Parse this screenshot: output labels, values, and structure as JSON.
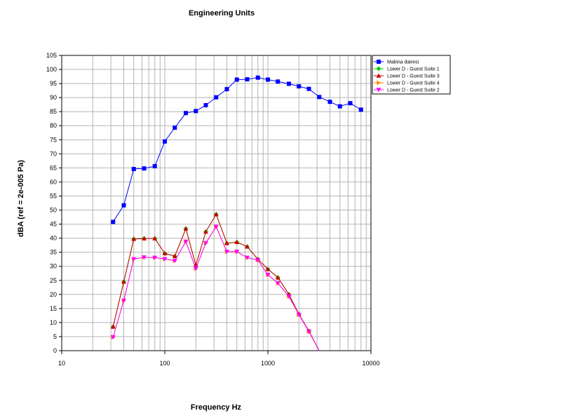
{
  "chart_data": {
    "type": "line",
    "title": "Engineering Units",
    "xlabel": "Frequency Hz",
    "ylabel": "dBA (ref = 2e-005 Pa)",
    "xscale": "log",
    "xlim": [
      10,
      10000
    ],
    "ylim": [
      0,
      105
    ],
    "grid": true,
    "legend_position": "top-right",
    "x_tick_labels": [
      "10",
      "100",
      "1000",
      "10000"
    ],
    "y_tick_labels": [
      "0",
      "5",
      "10",
      "15",
      "20",
      "25",
      "30",
      "35",
      "40",
      "45",
      "50",
      "55",
      "60",
      "65",
      "70",
      "75",
      "80",
      "85",
      "90",
      "95",
      "100",
      "105"
    ],
    "series": [
      {
        "name": "Makina dairesi",
        "color": "#0000ff",
        "marker": "square",
        "x": [
          31.5,
          40,
          50,
          63,
          80,
          100,
          125,
          160,
          200,
          250,
          315,
          400,
          500,
          630,
          800,
          1000,
          1250,
          1600,
          2000,
          2500,
          3150,
          4000,
          5000,
          6300,
          8000
        ],
        "values": [
          45.8,
          51.7,
          64.6,
          64.8,
          65.6,
          74.4,
          79.3,
          84.5,
          85.2,
          87.3,
          90.1,
          93.0,
          96.4,
          96.5,
          97.1,
          96.4,
          95.7,
          94.9,
          94.0,
          93.1,
          90.2,
          88.5,
          86.9,
          88.0,
          85.7
        ]
      },
      {
        "name": "Lower D - Guest Suite 1",
        "color": "#00cc00",
        "marker": "diamond",
        "x": [
          31.5,
          40,
          50,
          63,
          80,
          100,
          125,
          160,
          200,
          250,
          315,
          400,
          500,
          630,
          800,
          1000,
          1250,
          1600,
          2000,
          2500,
          3150
        ],
        "values": [
          8.5,
          24.5,
          39.7,
          39.9,
          39.9,
          34.6,
          33.6,
          43.4,
          30.4,
          42.3,
          48.5,
          38.2,
          38.6,
          37.0,
          32.5,
          29.0,
          26.0,
          20.0,
          13.0,
          7.0,
          0
        ]
      },
      {
        "name": "Lower D - Guest Suite 3",
        "color": "#cc0000",
        "marker": "triangle-up",
        "x": [
          31.5,
          40,
          50,
          63,
          80,
          100,
          125,
          160,
          200,
          250,
          315,
          400,
          500,
          630,
          800,
          1000,
          1250,
          1600,
          2000,
          2500,
          3150
        ],
        "values": [
          8.5,
          24.5,
          39.7,
          39.9,
          39.9,
          34.6,
          33.6,
          43.4,
          30.4,
          42.3,
          48.5,
          38.2,
          38.6,
          37.0,
          32.5,
          29.0,
          26.0,
          20.0,
          13.0,
          7.0,
          0
        ]
      },
      {
        "name": "Lower D - Guest Suite 4",
        "color": "#ff8800",
        "marker": "triangle-right",
        "x": [
          31.5,
          40,
          50,
          63,
          80,
          100,
          125,
          160,
          200,
          250,
          315,
          400,
          500,
          630,
          800,
          1000,
          1250,
          1600,
          2000,
          2500,
          3150
        ],
        "values": [
          4.8,
          17.8,
          32.6,
          33.2,
          33.1,
          32.6,
          32.0,
          38.8,
          29.2,
          38.3,
          44.1,
          35.2,
          35.2,
          33.1,
          32.2,
          27.0,
          24.0,
          19.3,
          12.8,
          6.8,
          0
        ]
      },
      {
        "name": "Lower D - Guest Suite 2",
        "color": "#ff00ff",
        "marker": "triangle-down",
        "x": [
          31.5,
          40,
          50,
          63,
          80,
          100,
          125,
          160,
          200,
          250,
          315,
          400,
          500,
          630,
          800,
          1000,
          1250,
          1600,
          2000,
          2500,
          3150
        ],
        "values": [
          4.8,
          17.8,
          32.6,
          33.2,
          33.1,
          32.6,
          32.0,
          38.8,
          29.2,
          38.3,
          44.1,
          35.2,
          35.2,
          33.1,
          32.2,
          27.0,
          24.0,
          19.3,
          12.8,
          6.8,
          0
        ]
      }
    ]
  }
}
